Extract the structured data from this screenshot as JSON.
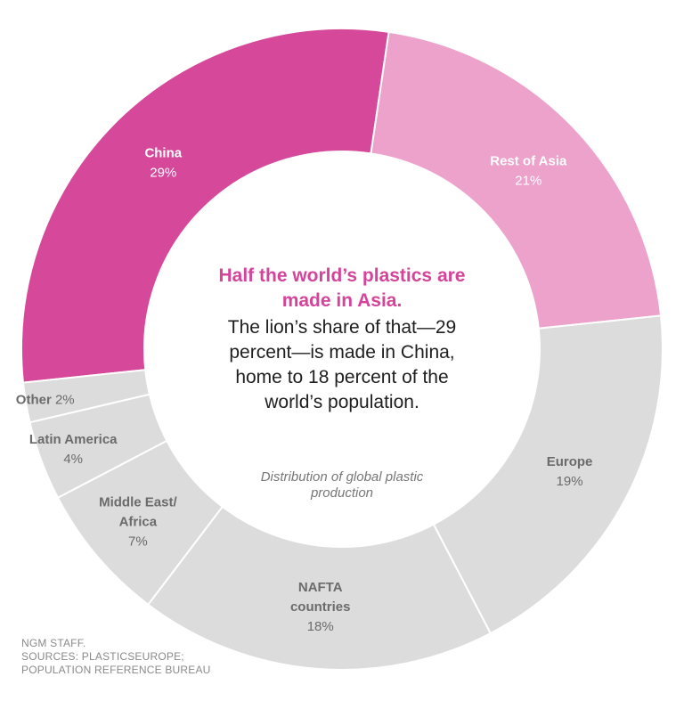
{
  "chart_data": {
    "type": "pie",
    "variant": "donut",
    "categories": [
      "China",
      "Rest of Asia",
      "Europe",
      "NAFTA countries",
      "Middle East/ Africa",
      "Latin America",
      "Other"
    ],
    "values": [
      29,
      21,
      19,
      18,
      7,
      4,
      2
    ],
    "unit": "%",
    "slices": [
      {
        "name": "China",
        "value": 29,
        "pct_label": "29%",
        "color": "#d5489a",
        "text_color": "#ffffff"
      },
      {
        "name": "Rest of Asia",
        "value": 21,
        "pct_label": "21%",
        "color": "#eca2cb",
        "text_color": "#ffffff"
      },
      {
        "name": "Europe",
        "value": 19,
        "pct_label": "19%",
        "color": "#dcdcdc",
        "text_color": "#6b6b6b"
      },
      {
        "name": "NAFTA countries",
        "value": 18,
        "pct_label": "18%",
        "color": "#dcdcdc",
        "text_color": "#6b6b6b"
      },
      {
        "name": "Middle East/ Africa",
        "value": 7,
        "pct_label": "7%",
        "color": "#dcdcdc",
        "text_color": "#6b6b6b"
      },
      {
        "name": "Latin America",
        "value": 4,
        "pct_label": "4%",
        "color": "#dcdcdc",
        "text_color": "#6b6b6b"
      },
      {
        "name": "Other",
        "value": 2,
        "pct_label": "2%",
        "color": "#dcdcdc",
        "text_color": "#6b6b6b"
      }
    ],
    "title": "Half the world’s plastics are made in Asia.",
    "annotation": "The lion’s share of that—29 percent—is made in China, home to 18 percent of the world’s population.",
    "caption": "Distribution of global plastic production",
    "legend": "none"
  },
  "credit": {
    "line1": "NGM STAFF.",
    "line2": "SOURCES: PLASTICSEUROPE;",
    "line3": "POPULATION REFERENCE BUREAU"
  },
  "colors": {
    "asia_accent": "#d5489a",
    "asia_light": "#eca2cb",
    "other_regions": "#dcdcdc"
  }
}
